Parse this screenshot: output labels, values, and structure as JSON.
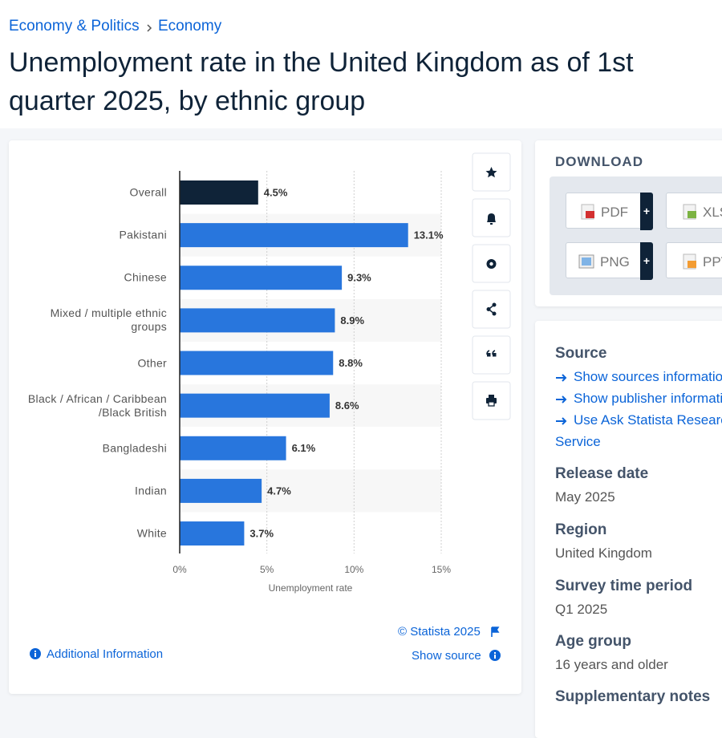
{
  "breadcrumb": [
    "Economy & Politics",
    "Economy"
  ],
  "title": "Unemployment rate in the United Kingdom as of 1st quarter 2025, by ethnic group",
  "chart_data": {
    "type": "bar",
    "orientation": "horizontal",
    "categories": [
      "Overall",
      "Pakistani",
      "Chinese",
      "Mixed / multiple ethnic groups",
      "Other",
      "Black / African / Caribbean /Black British",
      "Bangladeshi",
      "Indian",
      "White"
    ],
    "values": [
      4.5,
      13.1,
      9.3,
      8.9,
      8.8,
      8.6,
      6.1,
      4.7,
      3.7
    ],
    "value_labels": [
      "4.5%",
      "13.1%",
      "9.3%",
      "8.9%",
      "8.8%",
      "8.6%",
      "6.1%",
      "4.7%",
      "3.7%"
    ],
    "colors": [
      "#0f2338",
      "#2876dd",
      "#2876dd",
      "#2876dd",
      "#2876dd",
      "#2876dd",
      "#2876dd",
      "#2876dd",
      "#2876dd"
    ],
    "xlim": [
      0,
      15
    ],
    "xticks": [
      {
        "value": 0,
        "label": "0%"
      },
      {
        "value": 5,
        "label": "5%"
      },
      {
        "value": 10,
        "label": "10%"
      },
      {
        "value": 15,
        "label": "15%"
      }
    ],
    "x_label": "Unemployment rate",
    "grid": true
  },
  "chart_footer": {
    "copyright": "© Statista 2025",
    "show_source": "Show source",
    "additional_information": "Additional Information"
  },
  "download": {
    "heading": "DOWNLOAD",
    "buttons": [
      {
        "label": "PDF",
        "plus": "+"
      },
      {
        "label": "XLS"
      },
      {
        "label": "PNG",
        "plus": "+"
      },
      {
        "label": "PPT"
      }
    ]
  },
  "details": {
    "source_heading": "Source",
    "links": [
      "Show sources information",
      "Show publisher information",
      "Use Ask Statista Research Service"
    ],
    "items": [
      {
        "label": "Release date",
        "value": "May 2025"
      },
      {
        "label": "Region",
        "value": "United Kingdom"
      },
      {
        "label": "Survey time period",
        "value": "Q1 2025"
      },
      {
        "label": "Age group",
        "value": "16 years and older"
      }
    ],
    "next_heading": "Supplementary notes"
  }
}
